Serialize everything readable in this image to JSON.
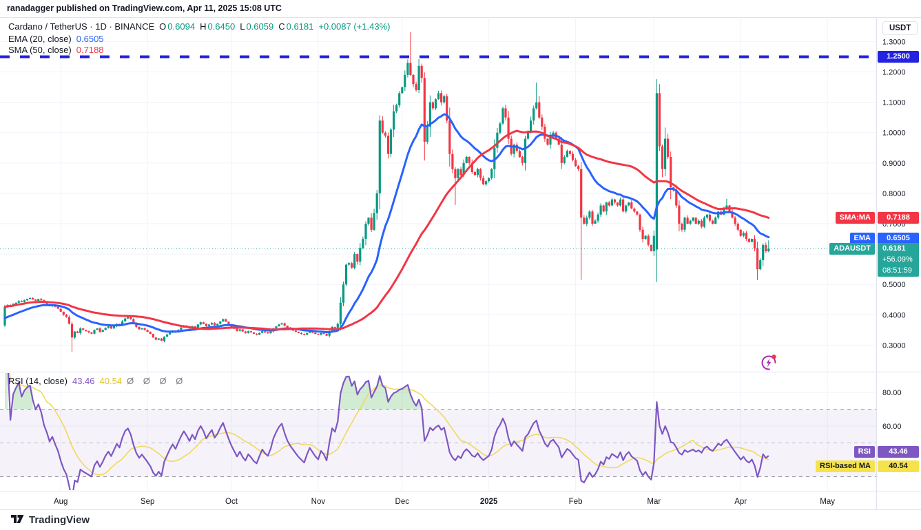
{
  "header": {
    "published_line": "ranadagger published on TradingView.com, Apr 11, 2025 15:08 UTC"
  },
  "legend": {
    "symbol_line": "Cardano / TetherUS · 1D · BINANCE",
    "ohlc": [
      {
        "k": "O",
        "v": "0.6094"
      },
      {
        "k": "H",
        "v": "0.6450"
      },
      {
        "k": "L",
        "v": "0.6059"
      },
      {
        "k": "C",
        "v": "0.6181"
      }
    ],
    "change": "+0.0087 (+1.43%)",
    "ema_label": "EMA (20, close)",
    "ema_value": "0.6505",
    "sma_label": "SMA (50, close)",
    "sma_value": "0.7188"
  },
  "rsi_legend": {
    "label": "RSI (14, close)",
    "rsi_value": "43.46",
    "ma_value": "40.54",
    "empties": "Ø Ø Ø Ø"
  },
  "axis": {
    "currency": "USDT",
    "price_ticks": [
      "1.3000",
      "1.2000",
      "1.1000",
      "1.0000",
      "0.9000",
      "0.8000",
      "0.7000",
      "0.6000",
      "0.5000",
      "0.4000",
      "0.3000"
    ],
    "rsi_ticks": [
      "80.00",
      "60.00"
    ]
  },
  "badges": {
    "line_1_25": {
      "value": "1.2500"
    },
    "sma": {
      "tag": "SMA:MA",
      "value": "0.7188"
    },
    "ema": {
      "tag": "EMA",
      "value": "0.6505"
    },
    "price": {
      "tag": "ADAUSDT",
      "value": "0.6181",
      "change": "+56.09%",
      "countdown": "08:51:59"
    },
    "rsi": {
      "tag": "RSI",
      "value": "43.46"
    },
    "rsi_ma": {
      "tag": "RSI-based MA",
      "value": "40.54"
    }
  },
  "footer": {
    "brand": "TradingView"
  },
  "colors": {
    "up": "#089981",
    "down": "#f23645",
    "ema": "#2962ff",
    "sma": "#f23645",
    "line_blue": "#2222e0",
    "price_badge": "#26a69a",
    "rsi": "#7e57c2",
    "rsi_ma_line": "#f0d95c",
    "grid": "#f0f3fa",
    "border": "#e0e3eb",
    "overbought_fill": "#4caf50"
  },
  "chart_data": {
    "type": "candlestick",
    "symbol": "ADAUSDT",
    "timeframe": "1D",
    "start_date": "2024-07-12",
    "price_axis_range": [
      0.212,
      1.392
    ],
    "rsi_axis_range": [
      21.6,
      91.8
    ],
    "grid": true,
    "month_labels": [
      {
        "label": "Aug",
        "day_index": 20,
        "bold": false
      },
      {
        "label": "Sep",
        "day_index": 51,
        "bold": false
      },
      {
        "label": "Oct",
        "day_index": 81,
        "bold": false
      },
      {
        "label": "Nov",
        "day_index": 112,
        "bold": false
      },
      {
        "label": "Dec",
        "day_index": 142,
        "bold": false
      },
      {
        "label": "2025",
        "day_index": 173,
        "bold": true
      },
      {
        "label": "Feb",
        "day_index": 204,
        "bold": false
      },
      {
        "label": "Mar",
        "day_index": 232,
        "bold": false
      },
      {
        "label": "Apr",
        "day_index": 263,
        "bold": false
      },
      {
        "label": "May",
        "day_index": 294,
        "bold": false
      }
    ],
    "closes": [
      0.425,
      0.432,
      0.428,
      0.436,
      0.44,
      0.445,
      0.442,
      0.448,
      0.452,
      0.455,
      0.45,
      0.446,
      0.452,
      0.448,
      0.44,
      0.435,
      0.428,
      0.432,
      0.426,
      0.42,
      0.41,
      0.4,
      0.392,
      0.37,
      0.325,
      0.345,
      0.34,
      0.355,
      0.35,
      0.346,
      0.342,
      0.338,
      0.35,
      0.355,
      0.344,
      0.35,
      0.357,
      0.362,
      0.355,
      0.362,
      0.37,
      0.365,
      0.378,
      0.388,
      0.392,
      0.385,
      0.372,
      0.36,
      0.352,
      0.356,
      0.35,
      0.344,
      0.337,
      0.325,
      0.318,
      0.322,
      0.314,
      0.328,
      0.335,
      0.342,
      0.348,
      0.342,
      0.35,
      0.358,
      0.365,
      0.36,
      0.354,
      0.362,
      0.357,
      0.368,
      0.375,
      0.37,
      0.362,
      0.368,
      0.373,
      0.365,
      0.37,
      0.378,
      0.385,
      0.377,
      0.369,
      0.361,
      0.354,
      0.347,
      0.352,
      0.345,
      0.34,
      0.346,
      0.342,
      0.337,
      0.334,
      0.34,
      0.346,
      0.342,
      0.339,
      0.345,
      0.355,
      0.362,
      0.368,
      0.372,
      0.364,
      0.357,
      0.352,
      0.348,
      0.344,
      0.34,
      0.337,
      0.334,
      0.34,
      0.345,
      0.341,
      0.337,
      0.334,
      0.34,
      0.337,
      0.331,
      0.345,
      0.36,
      0.357,
      0.37,
      0.44,
      0.5,
      0.565,
      0.57,
      0.555,
      0.6,
      0.575,
      0.62,
      0.65,
      0.7,
      0.72,
      0.68,
      0.735,
      0.8,
      1.04,
      1.0,
      0.99,
      0.93,
      1.01,
      1.07,
      1.09,
      1.13,
      1.15,
      1.19,
      1.23,
      1.19,
      1.16,
      1.14,
      1.22,
      1.18,
      0.97,
      1.02,
      1.1,
      1.08,
      1.11,
      1.13,
      1.1,
      1.12,
      1.04,
      0.93,
      0.88,
      0.85,
      0.88,
      0.86,
      0.9,
      0.92,
      0.9,
      0.87,
      0.86,
      0.88,
      0.85,
      0.83,
      0.84,
      0.85,
      0.88,
      0.95,
      1.0,
      1.03,
      1.08,
      1.05,
      0.98,
      0.93,
      0.96,
      0.94,
      0.92,
      0.9,
      0.98,
      1.0,
      1.04,
      1.08,
      1.1,
      1.05,
      1.02,
      0.98,
      0.96,
      0.99,
      1.0,
      0.98,
      0.96,
      0.9,
      0.92,
      0.94,
      0.93,
      0.91,
      0.89,
      0.88,
      0.72,
      0.7,
      0.72,
      0.74,
      0.7,
      0.71,
      0.73,
      0.76,
      0.74,
      0.77,
      0.76,
      0.78,
      0.77,
      0.76,
      0.78,
      0.74,
      0.76,
      0.77,
      0.75,
      0.74,
      0.73,
      0.68,
      0.65,
      0.66,
      0.63,
      0.61,
      0.66,
      1.13,
      0.955,
      0.88,
      0.98,
      0.92,
      0.82,
      0.81,
      0.76,
      0.7,
      0.68,
      0.72,
      0.7,
      0.71,
      0.72,
      0.7,
      0.71,
      0.69,
      0.72,
      0.73,
      0.71,
      0.7,
      0.72,
      0.74,
      0.73,
      0.75,
      0.76,
      0.74,
      0.72,
      0.7,
      0.68,
      0.66,
      0.67,
      0.65,
      0.64,
      0.65,
      0.62,
      0.55,
      0.58,
      0.63,
      0.6094,
      0.6181
    ],
    "overrides": {
      "0": {
        "open": 0.365
      },
      "24": {
        "low": 0.277
      },
      "145": {
        "high": 1.331
      },
      "150": {
        "low": 0.908
      },
      "161": {
        "low": 0.762
      },
      "190": {
        "high": 1.165
      },
      "206": {
        "low": 0.515
      },
      "233": {
        "open": 0.615,
        "high": 1.176
      },
      "258": {
        "high": 0.782
      },
      "269": {
        "low": 0.514
      },
      "273": {
        "open": 0.6094,
        "high": 0.645,
        "low": 0.6059
      }
    },
    "levels": {
      "horizontal_line": 1.25,
      "current_price": 0.6181
    },
    "indicators": {
      "ema_period": 20,
      "ema_seed": 0.385,
      "sma_period": 50,
      "rsi_period": 14,
      "rsi_ma_period": 14,
      "rsi_bands": [
        70,
        50,
        30
      ]
    },
    "last_values": {
      "ema": 0.6505,
      "sma": 0.7188,
      "rsi": 43.46,
      "rsi_ma": 40.54
    }
  }
}
